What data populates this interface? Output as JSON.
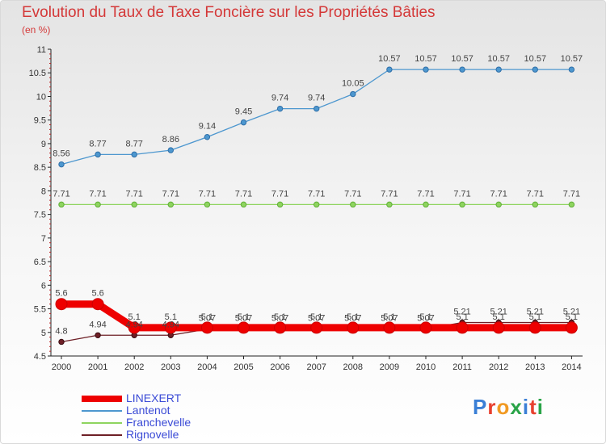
{
  "title": "Evolution du Taux de Taxe Foncière sur les Propriétés Bâties",
  "subtitle": "(en %)",
  "brand": {
    "text": "Proxiti",
    "colors": [
      "#3a7fd6",
      "#e8402f",
      "#f19a23",
      "#2aa448",
      "#3a7fd6",
      "#e8402f",
      "#2aa448"
    ]
  },
  "chart_data": {
    "type": "line",
    "x": [
      "2000",
      "2001",
      "2002",
      "2003",
      "2004",
      "2005",
      "2006",
      "2007",
      "2008",
      "2009",
      "2010",
      "2011",
      "2012",
      "2013",
      "2014"
    ],
    "ylim": [
      4.5,
      11
    ],
    "yticks": [
      "4.5",
      "5",
      "5.5",
      "6",
      "6.5",
      "7",
      "7.5",
      "8",
      "8.5",
      "9",
      "9.5",
      "10",
      "10.5",
      "11"
    ],
    "grid": false,
    "legend_position": "bottom-left",
    "series": [
      {
        "name": "LINEXERT",
        "color": "#ee0000",
        "values": [
          5.6,
          5.6,
          5.1,
          5.1,
          5.1,
          5.1,
          5.1,
          5.1,
          5.1,
          5.1,
          5.1,
          5.1,
          5.1,
          5.1,
          5.1
        ],
        "labels": [
          "5.6",
          "5.6",
          "5.1",
          "5.1",
          "5.1",
          "5.1",
          "5.1",
          "5.1",
          "5.1",
          "5.1",
          "5.1",
          "5.1",
          "5.1",
          "5.1",
          "5.1"
        ]
      },
      {
        "name": "Lantenot",
        "color": "#4d97cf",
        "values": [
          8.56,
          8.77,
          8.77,
          8.86,
          9.14,
          9.45,
          9.74,
          9.74,
          10.05,
          10.57,
          10.57,
          10.57,
          10.57,
          10.57,
          10.57
        ],
        "labels": [
          "8.56",
          "8.77",
          "8.77",
          "8.86",
          "9.14",
          "9.45",
          "9.74",
          "9.74",
          "10.05",
          "10.57",
          "10.57",
          "10.57",
          "10.57",
          "10.57",
          "10.57"
        ]
      },
      {
        "name": "Franchevelle",
        "color": "#8ed45f",
        "values": [
          7.71,
          7.71,
          7.71,
          7.71,
          7.71,
          7.71,
          7.71,
          7.71,
          7.71,
          7.71,
          7.71,
          7.71,
          7.71,
          7.71,
          7.71
        ],
        "labels": [
          "7.71",
          "7.71",
          "7.71",
          "7.71",
          "7.71",
          "7.71",
          "7.71",
          "7.71",
          "7.71",
          "7.71",
          "7.71",
          "7.71",
          "7.71",
          "7.71",
          "7.71"
        ]
      },
      {
        "name": "Rignovelle",
        "color": "#6e1f26",
        "values": [
          4.8,
          4.94,
          4.94,
          4.94,
          5.07,
          5.07,
          5.07,
          5.07,
          5.07,
          5.07,
          5.07,
          5.21,
          5.21,
          5.21,
          5.21
        ],
        "labels": [
          "4.8",
          "4.94",
          "4.94",
          "4.94",
          "5.07",
          "5.07",
          "5.07",
          "5.07",
          "5.07",
          "5.07",
          "5.07",
          "5.21",
          "5.21",
          "5.21",
          "5.21"
        ]
      }
    ]
  }
}
